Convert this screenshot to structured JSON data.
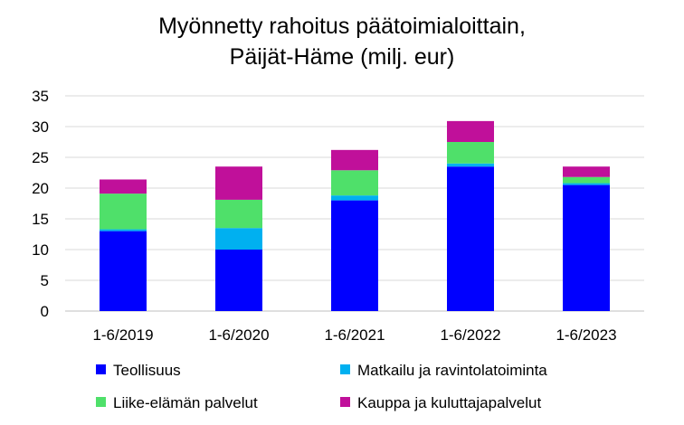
{
  "chart_data": {
    "type": "bar",
    "stacked": true,
    "title": "Myönnetty rahoitus päätoimialoittain,",
    "subtitle": "Päijät-Häme (milj. eur)",
    "categories": [
      "1-6/2019",
      "1-6/2020",
      "1-6/2021",
      "1-6/2022",
      "1-6/2023"
    ],
    "yticks": [
      "0",
      "5",
      "10",
      "15",
      "20",
      "25",
      "30",
      "35"
    ],
    "ylim": [
      0,
      35
    ],
    "grid": true,
    "legend_position": "bottom",
    "series": [
      {
        "name": "Teollisuus",
        "color": "#0000ff",
        "values": [
          13.0,
          10.0,
          18.0,
          23.5,
          20.5
        ]
      },
      {
        "name": "Matkailu ja ravintolatoiminta",
        "color": "#00b0f0",
        "values": [
          0.3,
          3.5,
          0.8,
          0.5,
          0.3
        ]
      },
      {
        "name": "Liike-elämän palvelut",
        "color": "#4fe06a",
        "values": [
          5.8,
          4.6,
          4.1,
          3.5,
          1.0
        ]
      },
      {
        "name": "Kauppa ja kuluttajapalvelut",
        "color": "#c0109a",
        "values": [
          2.3,
          5.4,
          3.3,
          3.4,
          1.7
        ]
      }
    ]
  }
}
